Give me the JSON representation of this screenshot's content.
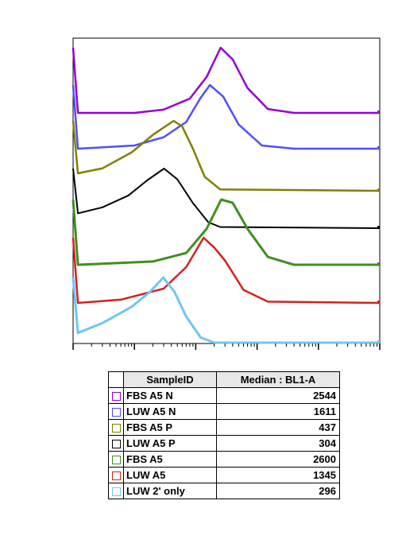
{
  "chart_data": {
    "type": "line",
    "title": "",
    "xlabel": "",
    "ylabel": "",
    "x_scale": "log",
    "xlim": [
      10,
      1000000
    ],
    "layout": "stacked-offset histograms",
    "series": [
      {
        "name": "FBS A5 N",
        "color": "#9400d3",
        "median": 2544,
        "points": [
          [
            10,
            1.0
          ],
          [
            12,
            0.0
          ],
          [
            100,
            0.0
          ],
          [
            300,
            0.05
          ],
          [
            800,
            0.22
          ],
          [
            1500,
            0.55
          ],
          [
            2544,
            1.0
          ],
          [
            4000,
            0.82
          ],
          [
            7000,
            0.38
          ],
          [
            15000,
            0.06
          ],
          [
            40000,
            0.0
          ],
          [
            1000000,
            0.0
          ]
        ]
      },
      {
        "name": "LUW A5 N",
        "color": "#4f4fff",
        "median": 1611,
        "points": [
          [
            10,
            1.0
          ],
          [
            12,
            0.0
          ],
          [
            100,
            0.05
          ],
          [
            300,
            0.18
          ],
          [
            700,
            0.42
          ],
          [
            1200,
            0.8
          ],
          [
            1700,
            1.0
          ],
          [
            2800,
            0.82
          ],
          [
            5000,
            0.38
          ],
          [
            12000,
            0.05
          ],
          [
            40000,
            0.0
          ],
          [
            1000000,
            0.0
          ]
        ]
      },
      {
        "name": "FBS A5 P",
        "color": "#808000",
        "median": 437,
        "points": [
          [
            10,
            1.0
          ],
          [
            12,
            0.25
          ],
          [
            30,
            0.32
          ],
          [
            90,
            0.55
          ],
          [
            200,
            0.8
          ],
          [
            437,
            1.0
          ],
          [
            600,
            0.92
          ],
          [
            900,
            0.6
          ],
          [
            1400,
            0.2
          ],
          [
            2500,
            0.02
          ],
          [
            1000000,
            0.0
          ]
        ]
      },
      {
        "name": "LUW A5 P",
        "color": "#000000",
        "median": 304,
        "points": [
          [
            10,
            1.0
          ],
          [
            12,
            0.25
          ],
          [
            30,
            0.35
          ],
          [
            80,
            0.55
          ],
          [
            160,
            0.8
          ],
          [
            304,
            1.0
          ],
          [
            500,
            0.82
          ],
          [
            900,
            0.42
          ],
          [
            1600,
            0.1
          ],
          [
            2500,
            0.02
          ],
          [
            1000000,
            0.0
          ]
        ]
      },
      {
        "name": "FBS A5",
        "color": "#3f8f1f",
        "median": 2600,
        "points": [
          [
            10,
            1.0
          ],
          [
            12,
            0.0
          ],
          [
            200,
            0.05
          ],
          [
            700,
            0.18
          ],
          [
            1500,
            0.55
          ],
          [
            2600,
            1.0
          ],
          [
            4000,
            0.95
          ],
          [
            7000,
            0.55
          ],
          [
            15000,
            0.12
          ],
          [
            40000,
            0.0
          ],
          [
            1000000,
            0.0
          ]
        ]
      },
      {
        "name": "LUW A5",
        "color": "#d52020",
        "median": 1345,
        "points": [
          [
            10,
            1.0
          ],
          [
            12,
            0.0
          ],
          [
            60,
            0.05
          ],
          [
            300,
            0.22
          ],
          [
            700,
            0.55
          ],
          [
            1345,
            1.0
          ],
          [
            2000,
            0.85
          ],
          [
            3000,
            0.65
          ],
          [
            6000,
            0.2
          ],
          [
            15000,
            0.02
          ],
          [
            1000000,
            0.0
          ]
        ]
      },
      {
        "name": "LUW 2' only",
        "color": "#6fc6f0",
        "median": 296,
        "points": [
          [
            10,
            1.0
          ],
          [
            12,
            0.15
          ],
          [
            30,
            0.3
          ],
          [
            90,
            0.55
          ],
          [
            180,
            0.78
          ],
          [
            296,
            1.0
          ],
          [
            450,
            0.78
          ],
          [
            700,
            0.4
          ],
          [
            1200,
            0.08
          ],
          [
            2000,
            0.0
          ],
          [
            1000000,
            0.0
          ]
        ]
      }
    ]
  },
  "table": {
    "header_sample": "SampleID",
    "header_median": "Median : BL1-A",
    "rows": [
      {
        "sample": "FBS A5 N",
        "median": "2544",
        "color": "#9400d3"
      },
      {
        "sample": "LUW A5 N",
        "median": "1611",
        "color": "#4f4fff"
      },
      {
        "sample": "FBS A5 P",
        "median": "437",
        "color": "#808000"
      },
      {
        "sample": "LUW A5 P",
        "median": "304",
        "color": "#000000"
      },
      {
        "sample": "FBS A5",
        "median": "2600",
        "color": "#3f8f1f"
      },
      {
        "sample": "LUW A5",
        "median": "1345",
        "color": "#d52020"
      },
      {
        "sample": "LUW 2' only",
        "median": "296",
        "color": "#6fc6f0"
      }
    ]
  }
}
